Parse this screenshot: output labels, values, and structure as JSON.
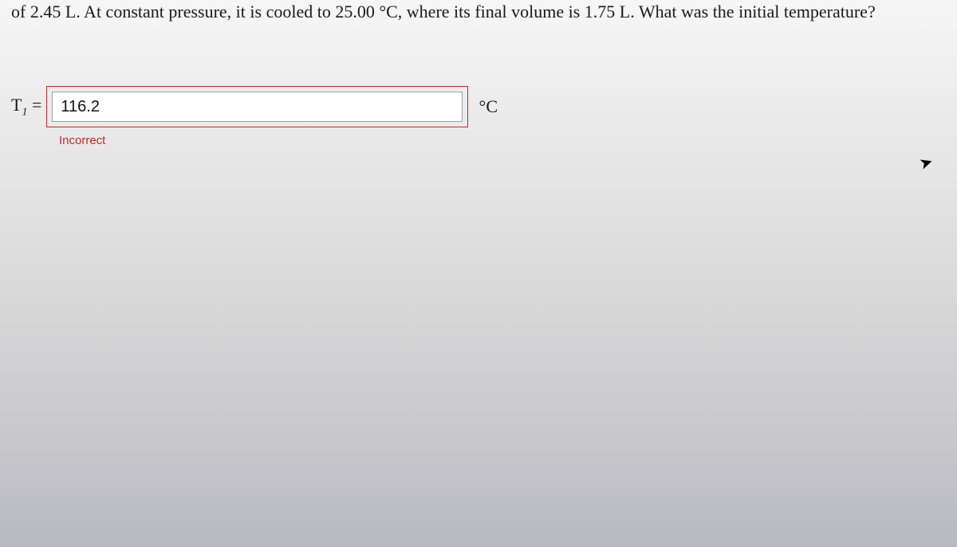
{
  "question": {
    "text_line": "of 2.45 L. At constant pressure, it is cooled to 25.00 °C, where its final volume is 1.75 L. What was the initial temperature?"
  },
  "answer": {
    "variable_html": "T",
    "subscript": "1",
    "equals": "=",
    "value": "116.2",
    "placeholder": "",
    "unit": "°C"
  },
  "feedback": {
    "status": "Incorrect"
  },
  "style": {
    "error_color": "#c62828",
    "background_start": "#f6f6f6",
    "background_end": "#b8b8c0",
    "text_color": "#1a1a1a",
    "question_fontsize": 22,
    "input_border": "#9e9e9e",
    "input_bg": "#ffffff",
    "feedback_fontsize": 15,
    "font_serif": "Georgia, 'Times New Roman', serif",
    "font_sans": "Arial, Helvetica, sans-serif"
  }
}
